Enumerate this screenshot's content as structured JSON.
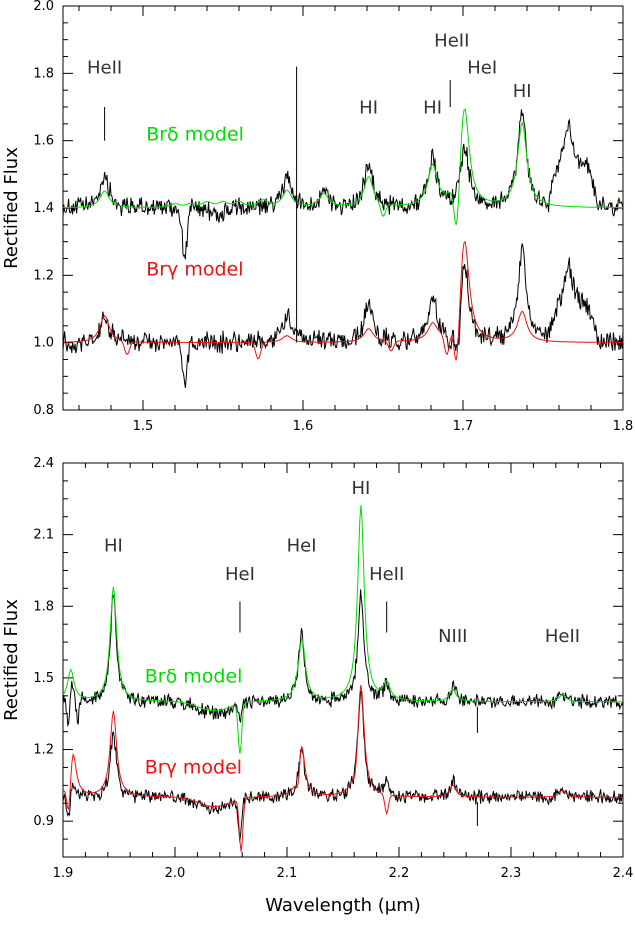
{
  "chart_data": [
    {
      "type": "line",
      "ylabel": "Rectified Flux",
      "xlabel": "",
      "xlim": [
        1.45,
        1.8
      ],
      "ylim": [
        0.8,
        2.0
      ],
      "xticks": [
        "1.5",
        "1.6",
        "1.7",
        "1.8"
      ],
      "yticks": [
        "0.8",
        "1.0",
        "1.2",
        "1.4",
        "1.6",
        "1.8",
        "2.0"
      ],
      "colors": {
        "observed": "#000000",
        "brdelta": "#00dd00",
        "brgamma": "#ee1111"
      },
      "model_labels": [
        {
          "text": "Brδ model",
          "color": "#00dd00",
          "x": 1.502,
          "y": 1.6
        },
        {
          "text": "Brγ model",
          "color": "#ee1111",
          "x": 1.502,
          "y": 1.2
        }
      ],
      "line_labels": [
        {
          "text": "HeII",
          "x": 1.476,
          "y": 1.8
        },
        {
          "text": "HI",
          "x": 1.641,
          "y": 1.68
        },
        {
          "text": "HI",
          "x": 1.681,
          "y": 1.68
        },
        {
          "text": "HeII",
          "x": 1.693,
          "y": 1.88
        },
        {
          "text": "HeI",
          "x": 1.712,
          "y": 1.8
        },
        {
          "text": "HI",
          "x": 1.737,
          "y": 1.73
        }
      ],
      "markers": [
        {
          "x": 1.476,
          "y0": 1.6,
          "y1": 1.7
        },
        {
          "x": 1.596,
          "y0": 1.0,
          "y1": 1.82
        },
        {
          "x": 1.692,
          "y0": 1.7,
          "y1": 1.78
        }
      ],
      "series": [
        {
          "role": "observed-upper",
          "offset": 1.4,
          "lines": [
            [
              1.476,
              0.1
            ],
            [
              1.548,
              -0.03
            ],
            [
              1.59,
              0.09
            ],
            [
              1.613,
              0.05
            ],
            [
              1.641,
              0.12
            ],
            [
              1.681,
              0.15
            ],
            [
              1.701,
              0.18
            ],
            [
              1.737,
              0.28
            ],
            [
              1.766,
              0.12
            ]
          ],
          "flat": [
            [
              1.754,
              1.784,
              0.12
            ]
          ],
          "dips": [
            [
              1.526,
              -0.14
            ]
          ]
        },
        {
          "role": "brdelta-model",
          "offset": 1.4,
          "lines": [
            [
              1.476,
              0.05
            ],
            [
              1.52,
              0.01
            ],
            [
              1.53,
              0.01
            ],
            [
              1.54,
              0.015
            ],
            [
              1.55,
              0.015
            ],
            [
              1.56,
              0.015
            ],
            [
              1.575,
              0.02
            ],
            [
              1.59,
              0.05
            ],
            [
              1.613,
              0.04
            ],
            [
              1.641,
              0.09
            ],
            [
              1.681,
              0.12
            ],
            [
              1.701,
              0.29
            ],
            [
              1.737,
              0.25
            ]
          ],
          "dips": [
            [
              1.696,
              -0.15
            ],
            [
              1.65,
              -0.04
            ]
          ]
        },
        {
          "role": "observed-lower",
          "offset": 1.0,
          "lines": [
            [
              1.476,
              0.08
            ],
            [
              1.59,
              0.09
            ],
            [
              1.641,
              0.12
            ],
            [
              1.681,
              0.13
            ],
            [
              1.701,
              0.23
            ],
            [
              1.737,
              0.28
            ],
            [
              1.766,
              0.12
            ]
          ],
          "flat": [
            [
              1.754,
              1.784,
              0.1
            ]
          ],
          "dips": [
            [
              1.526,
              -0.12
            ],
            [
              1.692,
              -0.05
            ],
            [
              1.697,
              -0.1
            ]
          ]
        },
        {
          "role": "brgamma-model",
          "offset": 1.0,
          "lines": [
            [
              1.476,
              0.08
            ],
            [
              1.59,
              0.02
            ],
            [
              1.641,
              0.04
            ],
            [
              1.681,
              0.05
            ],
            [
              1.701,
              0.3
            ],
            [
              1.737,
              0.09
            ]
          ],
          "dips": [
            [
              1.696,
              -0.15
            ],
            [
              1.655,
              -0.03
            ],
            [
              1.69,
              -0.07
            ],
            [
              1.49,
              -0.04
            ],
            [
              1.572,
              -0.05
            ]
          ]
        }
      ]
    },
    {
      "type": "line",
      "ylabel": "Rectified Flux",
      "xlabel": "Wavelength (μm)",
      "xlim": [
        1.9,
        2.4
      ],
      "ylim": [
        0.75,
        2.4
      ],
      "xticks": [
        "1.9",
        "2.0",
        "2.1",
        "2.2",
        "2.3",
        "2.4"
      ],
      "yticks": [
        "0.9",
        "1.2",
        "1.5",
        "1.8",
        "2.1",
        "2.4"
      ],
      "colors": {
        "observed": "#000000",
        "brdelta": "#00dd00",
        "brgamma": "#ee1111"
      },
      "model_labels": [
        {
          "text": "Brδ model",
          "color": "#00dd00",
          "x": 1.973,
          "y": 1.48
        },
        {
          "text": "Brγ model",
          "color": "#ee1111",
          "x": 1.973,
          "y": 1.1
        }
      ],
      "line_labels": [
        {
          "text": "HI",
          "x": 1.945,
          "y": 2.03
        },
        {
          "text": "HeI",
          "x": 2.058,
          "y": 1.91
        },
        {
          "text": "HeI",
          "x": 2.113,
          "y": 2.03
        },
        {
          "text": "HI",
          "x": 2.166,
          "y": 2.27
        },
        {
          "text": "HeII",
          "x": 2.189,
          "y": 1.91
        },
        {
          "text": "NIII",
          "x": 2.248,
          "y": 1.65
        },
        {
          "text": "HeII",
          "x": 2.346,
          "y": 1.65
        }
      ],
      "markers": [
        {
          "x": 2.058,
          "y0": 1.69,
          "y1": 1.82
        },
        {
          "x": 2.189,
          "y0": 1.69,
          "y1": 1.82
        },
        {
          "x": 2.27,
          "y0": 1.27,
          "y1": 1.38
        },
        {
          "x": 2.27,
          "y0": 0.88,
          "y1": 0.98
        }
      ],
      "series": [
        {
          "role": "observed-upper",
          "offset": 1.4,
          "lines": [
            [
              1.907,
              0.1
            ],
            [
              1.945,
              0.45
            ],
            [
              2.113,
              0.29
            ],
            [
              2.166,
              0.45
            ],
            [
              2.189,
              0.07
            ],
            [
              2.248,
              0.07
            ],
            [
              2.346,
              0.03
            ]
          ],
          "dips": [
            [
              1.905,
              -0.14
            ],
            [
              1.913,
              -0.1
            ],
            [
              2.058,
              -0.06
            ]
          ],
          "broad": [
            [
              2.035,
              -0.05,
              0.02
            ]
          ]
        },
        {
          "role": "brdelta-model",
          "offset": 1.4,
          "lines": [
            [
              1.907,
              0.13
            ],
            [
              1.945,
              0.48
            ],
            [
              2.113,
              0.3
            ],
            [
              2.166,
              0.82
            ],
            [
              2.189,
              0.07
            ],
            [
              2.248,
              0.05
            ],
            [
              2.346,
              0.03
            ]
          ],
          "dips": [
            [
              2.058,
              -0.21
            ],
            [
              2.112,
              -0.05
            ]
          ],
          "broad": [
            [
              2.035,
              -0.04,
              0.02
            ]
          ]
        },
        {
          "role": "observed-lower",
          "offset": 1.0,
          "lines": [
            [
              1.907,
              0.08
            ],
            [
              1.945,
              0.27
            ],
            [
              2.113,
              0.2
            ],
            [
              2.166,
              0.45
            ],
            [
              2.189,
              0.07
            ],
            [
              2.248,
              0.07
            ],
            [
              2.346,
              0.03
            ]
          ],
          "dips": [
            [
              1.905,
              -0.14
            ],
            [
              2.058,
              -0.16
            ]
          ],
          "broad": [
            [
              2.035,
              -0.05,
              0.02
            ]
          ]
        },
        {
          "role": "brgamma-model",
          "offset": 1.0,
          "lines": [
            [
              1.909,
              0.18
            ],
            [
              1.945,
              0.36
            ],
            [
              2.113,
              0.22
            ],
            [
              2.166,
              0.47
            ],
            [
              2.248,
              0.05
            ],
            [
              2.346,
              0.03
            ]
          ],
          "dips": [
            [
              1.905,
              -0.13
            ],
            [
              2.059,
              -0.22
            ],
            [
              2.189,
              -0.08
            ],
            [
              2.11,
              -0.07
            ],
            [
              2.161,
              -0.05
            ]
          ],
          "broad": [
            [
              2.035,
              -0.04,
              0.02
            ]
          ]
        }
      ]
    }
  ]
}
